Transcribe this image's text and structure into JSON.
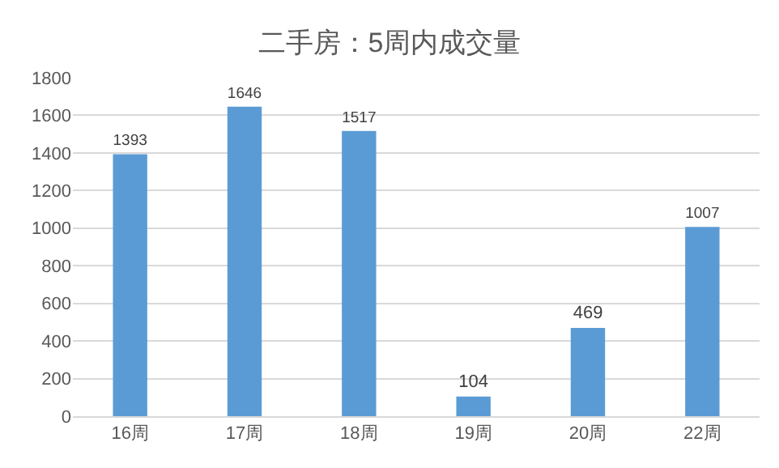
{
  "chart_data": {
    "type": "bar",
    "title": "二手房：5周内成交量",
    "categories": [
      "16周",
      "17周",
      "18周",
      "19周",
      "20周",
      "22周"
    ],
    "values": [
      1393,
      1646,
      1517,
      104,
      469,
      1007
    ],
    "color": "#5b9bd5",
    "ylim": [
      0,
      1800
    ],
    "yticks": [
      0,
      200,
      400,
      600,
      800,
      1000,
      1200,
      1400,
      1600,
      1800
    ],
    "grid": "y",
    "data_labels": true
  }
}
